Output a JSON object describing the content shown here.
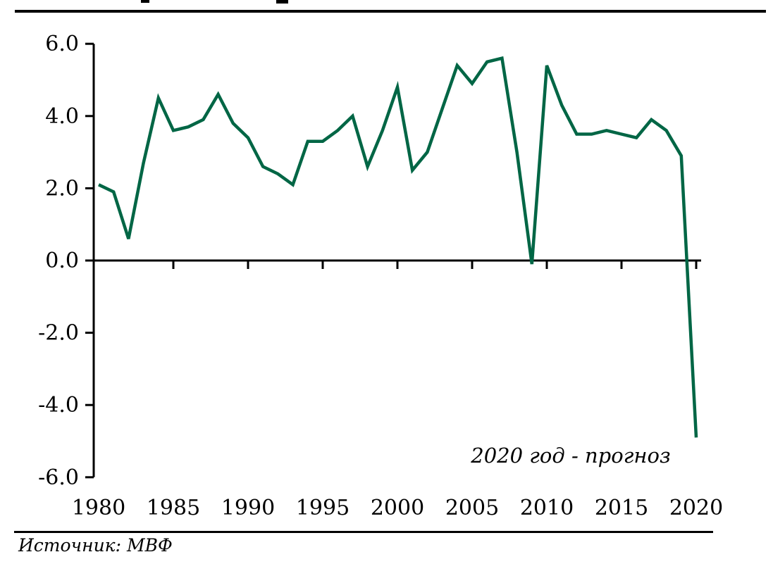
{
  "chart_data": {
    "type": "line",
    "x": [
      1980,
      1981,
      1982,
      1983,
      1984,
      1985,
      1986,
      1987,
      1988,
      1989,
      1990,
      1991,
      1992,
      1993,
      1994,
      1995,
      1996,
      1997,
      1998,
      1999,
      2000,
      2001,
      2002,
      2003,
      2004,
      2005,
      2006,
      2007,
      2008,
      2009,
      2010,
      2011,
      2012,
      2013,
      2014,
      2015,
      2016,
      2017,
      2018,
      2019,
      2020
    ],
    "values": [
      2.1,
      1.9,
      0.6,
      2.7,
      4.5,
      3.6,
      3.7,
      3.9,
      4.6,
      3.8,
      3.4,
      2.6,
      2.4,
      2.1,
      3.3,
      3.3,
      3.6,
      4.0,
      2.6,
      3.6,
      4.8,
      2.5,
      3.0,
      4.2,
      5.4,
      4.9,
      5.5,
      5.6,
      3.0,
      -0.1,
      5.4,
      4.3,
      3.5,
      3.5,
      3.6,
      3.5,
      3.4,
      3.9,
      3.6,
      2.9,
      -4.9
    ],
    "xticks": [
      1980,
      1985,
      1990,
      1995,
      2000,
      2005,
      2010,
      2015,
      2020
    ],
    "xtick_labels": [
      "1980",
      "1985",
      "1990",
      "1995",
      "2000",
      "2005",
      "2010",
      "2015",
      "2020"
    ],
    "ytick_values": [
      6,
      4,
      2,
      0,
      -2,
      -4,
      -6
    ],
    "ytick_labels": [
      "6.0",
      "4.0",
      "2.0",
      "0.0",
      "-2.0",
      "-4.0",
      "-6.0"
    ],
    "xlim": [
      1980,
      2020
    ],
    "ylim": [
      -6.0,
      6.0
    ],
    "grid": "off",
    "legend": "none",
    "annotation": "2020 год - прогноз",
    "line_color": "#006645",
    "axis_color": "#000000"
  },
  "source_note": "Источник: МВФ"
}
